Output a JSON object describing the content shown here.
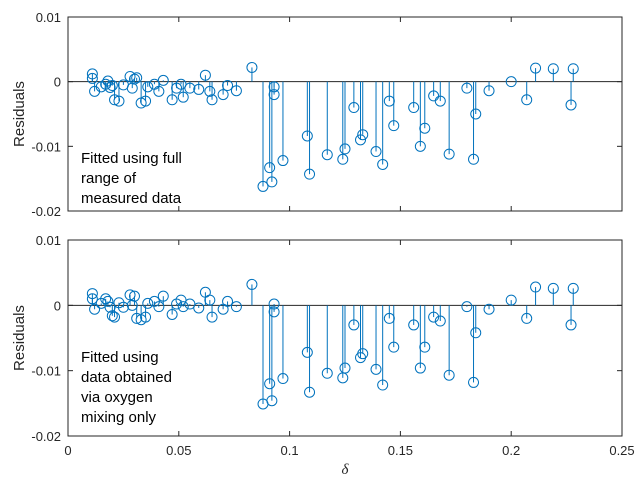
{
  "chart_data": [
    {
      "type": "stem",
      "ylabel": "Residuals",
      "xlim": [
        0,
        0.25
      ],
      "ylim": [
        -0.02,
        0.01
      ],
      "xticks": [
        0,
        0.05,
        0.1,
        0.15,
        0.2,
        0.25
      ],
      "xtick_labels": [
        "",
        "",
        "",
        "",
        "",
        ""
      ],
      "yticks": [
        0.01,
        0,
        -0.01,
        -0.02
      ],
      "ytick_labels": [
        "0.01",
        "0",
        "-0.01",
        "-0.02"
      ],
      "annotation": [
        "Fitted using full",
        "range of",
        "measured data"
      ],
      "color": "#0072BD",
      "baseline": 0,
      "points": [
        [
          0.011,
          0.0012
        ],
        [
          0.011,
          0.0005
        ],
        [
          0.012,
          -0.0015
        ],
        [
          0.015,
          -0.0008
        ],
        [
          0.017,
          -0.0004
        ],
        [
          0.018,
          0.0001
        ],
        [
          0.019,
          -0.0009
        ],
        [
          0.02,
          -0.0006
        ],
        [
          0.021,
          -0.0028
        ],
        [
          0.023,
          -0.003
        ],
        [
          0.025,
          -0.0005
        ],
        [
          0.028,
          0.0008
        ],
        [
          0.029,
          -0.001
        ],
        [
          0.03,
          0.0004
        ],
        [
          0.031,
          0.0006
        ],
        [
          0.033,
          -0.0033
        ],
        [
          0.035,
          -0.003
        ],
        [
          0.036,
          -0.0008
        ],
        [
          0.039,
          -0.0004
        ],
        [
          0.041,
          -0.0015
        ],
        [
          0.043,
          0.0002
        ],
        [
          0.047,
          -0.0028
        ],
        [
          0.049,
          -0.001
        ],
        [
          0.051,
          -0.0004
        ],
        [
          0.052,
          -0.0024
        ],
        [
          0.055,
          -0.001
        ],
        [
          0.059,
          -0.0012
        ],
        [
          0.062,
          0.001
        ],
        [
          0.064,
          -0.0015
        ],
        [
          0.065,
          -0.0028
        ],
        [
          0.07,
          -0.002
        ],
        [
          0.072,
          -0.0006
        ],
        [
          0.076,
          -0.0014
        ],
        [
          0.083,
          0.0022
        ],
        [
          0.088,
          -0.0162
        ],
        [
          0.091,
          -0.0133
        ],
        [
          0.092,
          -0.0155
        ],
        [
          0.093,
          -0.002
        ],
        [
          0.093,
          -0.0008
        ],
        [
          0.097,
          -0.0122
        ],
        [
          0.108,
          -0.0084
        ],
        [
          0.109,
          -0.0143
        ],
        [
          0.117,
          -0.0113
        ],
        [
          0.124,
          -0.012
        ],
        [
          0.125,
          -0.0104
        ],
        [
          0.129,
          -0.004
        ],
        [
          0.132,
          -0.009
        ],
        [
          0.133,
          -0.0082
        ],
        [
          0.139,
          -0.0108
        ],
        [
          0.142,
          -0.0128
        ],
        [
          0.145,
          -0.003
        ],
        [
          0.147,
          -0.0068
        ],
        [
          0.156,
          -0.004
        ],
        [
          0.159,
          -0.01
        ],
        [
          0.161,
          -0.0072
        ],
        [
          0.165,
          -0.0022
        ],
        [
          0.168,
          -0.003
        ],
        [
          0.172,
          -0.0112
        ],
        [
          0.18,
          -0.001
        ],
        [
          0.183,
          -0.012
        ],
        [
          0.184,
          -0.005
        ],
        [
          0.19,
          -0.0014
        ],
        [
          0.2,
          0.0
        ],
        [
          0.207,
          -0.0028
        ],
        [
          0.211,
          0.0021
        ],
        [
          0.219,
          0.002
        ],
        [
          0.227,
          -0.0036
        ],
        [
          0.228,
          0.002
        ]
      ]
    },
    {
      "type": "stem",
      "ylabel": "Residuals",
      "xlabel": "δ",
      "xlim": [
        0,
        0.25
      ],
      "ylim": [
        -0.02,
        0.01
      ],
      "xticks": [
        0,
        0.05,
        0.1,
        0.15,
        0.2,
        0.25
      ],
      "xtick_labels": [
        "0",
        "0.05",
        "0.1",
        "0.15",
        "0.2",
        "0.25"
      ],
      "yticks": [
        0.01,
        0,
        -0.01,
        -0.02
      ],
      "ytick_labels": [
        "0.01",
        "0",
        "-0.01",
        "-0.02"
      ],
      "annotation": [
        "Fitted using",
        "data obtained",
        "via oxygen",
        "mixing only"
      ],
      "color": "#0072BD",
      "baseline": 0,
      "points": [
        [
          0.011,
          0.0018
        ],
        [
          0.011,
          0.001
        ],
        [
          0.012,
          -0.0006
        ],
        [
          0.015,
          0.0003
        ],
        [
          0.017,
          0.001
        ],
        [
          0.018,
          0.0006
        ],
        [
          0.019,
          -0.0003
        ],
        [
          0.02,
          -0.0016
        ],
        [
          0.021,
          -0.0018
        ],
        [
          0.023,
          0.0004
        ],
        [
          0.025,
          -0.0003
        ],
        [
          0.028,
          0.0016
        ],
        [
          0.029,
          0.0
        ],
        [
          0.03,
          0.0014
        ],
        [
          0.031,
          -0.002
        ],
        [
          0.033,
          -0.0022
        ],
        [
          0.035,
          -0.0018
        ],
        [
          0.036,
          0.0003
        ],
        [
          0.039,
          0.0006
        ],
        [
          0.041,
          -0.0002
        ],
        [
          0.043,
          0.0014
        ],
        [
          0.047,
          -0.0014
        ],
        [
          0.049,
          0.0002
        ],
        [
          0.051,
          0.0008
        ],
        [
          0.052,
          -0.0002
        ],
        [
          0.055,
          0.0002
        ],
        [
          0.059,
          -0.0004
        ],
        [
          0.062,
          0.002
        ],
        [
          0.064,
          0.0008
        ],
        [
          0.065,
          -0.0018
        ],
        [
          0.07,
          -0.0006
        ],
        [
          0.072,
          0.0006
        ],
        [
          0.076,
          -0.0002
        ],
        [
          0.083,
          0.0032
        ],
        [
          0.088,
          -0.0151
        ],
        [
          0.091,
          -0.012
        ],
        [
          0.092,
          -0.0146
        ],
        [
          0.093,
          0.0002
        ],
        [
          0.093,
          -0.001
        ],
        [
          0.097,
          -0.0112
        ],
        [
          0.108,
          -0.0072
        ],
        [
          0.109,
          -0.0133
        ],
        [
          0.117,
          -0.0104
        ],
        [
          0.124,
          -0.0111
        ],
        [
          0.125,
          -0.0096
        ],
        [
          0.129,
          -0.003
        ],
        [
          0.132,
          -0.008
        ],
        [
          0.133,
          -0.0074
        ],
        [
          0.139,
          -0.0098
        ],
        [
          0.142,
          -0.0122
        ],
        [
          0.145,
          -0.002
        ],
        [
          0.147,
          -0.0064
        ],
        [
          0.156,
          -0.003
        ],
        [
          0.159,
          -0.0096
        ],
        [
          0.161,
          -0.0064
        ],
        [
          0.165,
          -0.0018
        ],
        [
          0.168,
          -0.0024
        ],
        [
          0.172,
          -0.0107
        ],
        [
          0.18,
          -0.0002
        ],
        [
          0.183,
          -0.0118
        ],
        [
          0.184,
          -0.0042
        ],
        [
          0.19,
          -0.0006
        ],
        [
          0.2,
          0.0008
        ],
        [
          0.207,
          -0.002
        ],
        [
          0.211,
          0.0028
        ],
        [
          0.219,
          0.0026
        ],
        [
          0.227,
          -0.003
        ],
        [
          0.228,
          0.0026
        ]
      ]
    }
  ]
}
